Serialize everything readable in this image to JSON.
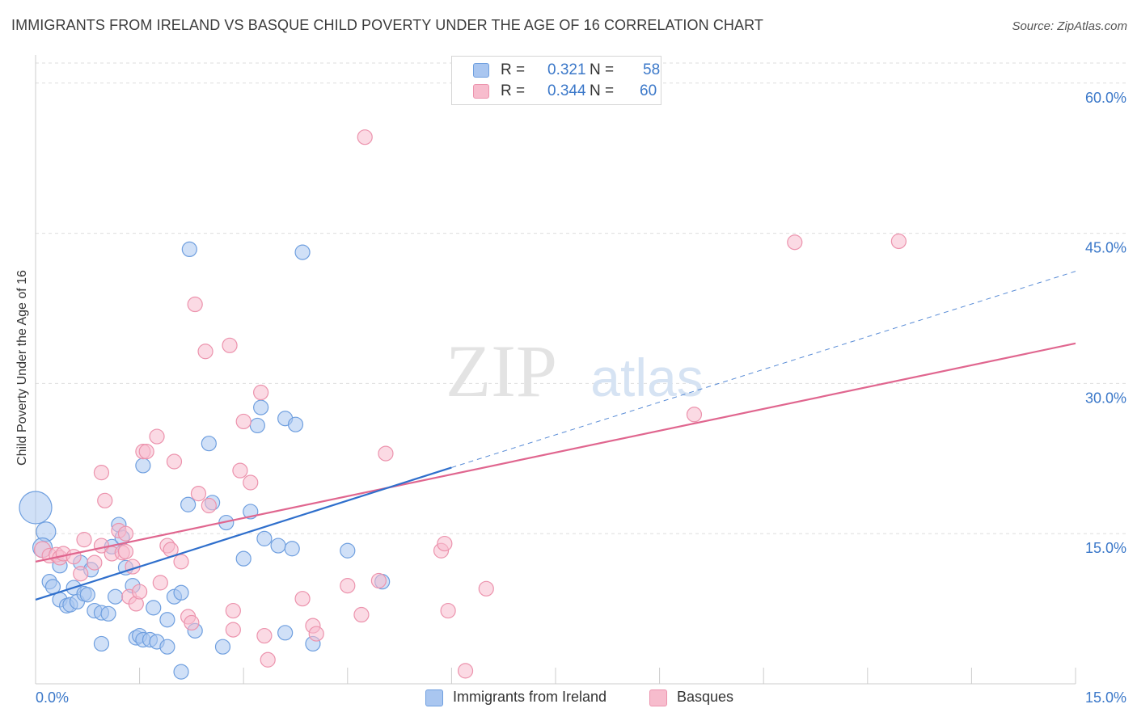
{
  "title": "IMMIGRANTS FROM IRELAND VS BASQUE CHILD POVERTY UNDER THE AGE OF 16 CORRELATION CHART",
  "source": "Source: ZipAtlas.com",
  "watermark": {
    "zip": "ZIP",
    "atlas": "atlas"
  },
  "legend_top": {
    "rows": [
      {
        "r_label": "R =",
        "r_value": "0.321",
        "n_label": "N =",
        "n_value": "58"
      },
      {
        "r_label": "R =",
        "r_value": "0.344",
        "n_label": "N =",
        "n_value": "60"
      }
    ]
  },
  "chart_data": {
    "type": "scatter",
    "title": "IMMIGRANTS FROM IRELAND VS BASQUE CHILD POVERTY UNDER THE AGE OF 16 CORRELATION CHART",
    "xlabel": "",
    "ylabel": "Child Poverty Under the Age of 16",
    "xlim": [
      0,
      15
    ],
    "ylim": [
      0,
      62
    ],
    "x_tick_labels": [
      "0.0%",
      "15.0%"
    ],
    "y_ticks": [
      15,
      30,
      45,
      60
    ],
    "y_tick_labels": [
      "15.0%",
      "30.0%",
      "45.0%",
      "60.0%"
    ],
    "grid": true,
    "legend_position": "bottom",
    "colors": {
      "blue_fill": "#a9c6f0",
      "blue_stroke": "#6f9fdf",
      "blue_line": "#2f6fcc",
      "pink_fill": "#f7bccd",
      "pink_stroke": "#ec93ad",
      "pink_line": "#e0668f",
      "tick_label": "#3b78c9",
      "grid": "#dedede"
    },
    "series": [
      {
        "name": "Immigrants from Ireland",
        "color": "#a9c6f0",
        "points": [
          [
            0.0,
            17.6,
            20
          ],
          [
            0.15,
            15.2,
            12
          ],
          [
            0.1,
            13.6,
            12
          ],
          [
            0.2,
            10.2,
            9
          ],
          [
            0.25,
            9.7,
            9
          ],
          [
            0.35,
            11.8,
            9
          ],
          [
            0.35,
            8.4,
            9
          ],
          [
            0.45,
            7.8,
            9
          ],
          [
            0.5,
            7.9,
            9
          ],
          [
            0.55,
            9.6,
            9
          ],
          [
            0.6,
            8.2,
            9
          ],
          [
            0.65,
            12.1,
            9
          ],
          [
            0.7,
            9.0,
            9
          ],
          [
            0.75,
            8.9,
            9
          ],
          [
            0.8,
            11.4,
            9
          ],
          [
            0.85,
            7.3,
            9
          ],
          [
            0.95,
            7.1,
            9
          ],
          [
            1.05,
            7.0,
            9
          ],
          [
            0.95,
            4.0,
            9
          ],
          [
            1.1,
            13.7,
            9
          ],
          [
            1.2,
            15.9,
            9
          ],
          [
            1.25,
            14.6,
            9
          ],
          [
            1.3,
            11.6,
            9
          ],
          [
            1.15,
            8.7,
            9
          ],
          [
            1.4,
            9.8,
            9
          ],
          [
            1.45,
            4.6,
            9
          ],
          [
            1.5,
            4.8,
            9
          ],
          [
            1.55,
            4.4,
            9
          ],
          [
            1.65,
            4.4,
            9
          ],
          [
            1.75,
            4.2,
            9
          ],
          [
            1.55,
            21.8,
            9
          ],
          [
            1.7,
            7.6,
            9
          ],
          [
            1.9,
            6.4,
            9
          ],
          [
            1.9,
            3.7,
            9
          ],
          [
            2.0,
            8.7,
            9
          ],
          [
            2.1,
            9.1,
            9
          ],
          [
            2.1,
            1.2,
            9
          ],
          [
            2.2,
            17.9,
            9
          ],
          [
            2.3,
            5.3,
            9
          ],
          [
            2.5,
            24.0,
            9
          ],
          [
            2.55,
            18.1,
            9
          ],
          [
            2.7,
            3.7,
            9
          ],
          [
            2.75,
            16.1,
            9
          ],
          [
            3.0,
            12.5,
            9
          ],
          [
            3.1,
            17.2,
            9
          ],
          [
            3.2,
            25.8,
            9
          ],
          [
            3.25,
            27.6,
            9
          ],
          [
            3.3,
            14.5,
            9
          ],
          [
            3.5,
            13.8,
            9
          ],
          [
            3.6,
            5.1,
            9
          ],
          [
            3.6,
            26.5,
            9
          ],
          [
            3.75,
            25.9,
            9
          ],
          [
            3.7,
            13.5,
            9
          ],
          [
            4.0,
            4.0,
            9
          ],
          [
            4.5,
            13.3,
            9
          ],
          [
            5.0,
            10.2,
            9
          ],
          [
            2.22,
            43.4,
            9
          ],
          [
            3.85,
            43.1,
            9
          ]
        ],
        "trend": {
          "x": [
            0,
            6
          ],
          "y": [
            8.4,
            21.6
          ],
          "dashed_to": [
            15,
            41.2
          ]
        }
      },
      {
        "name": "Basques",
        "color": "#f7bccd",
        "points": [
          [
            0.1,
            13.4,
            10
          ],
          [
            0.2,
            12.8,
            9
          ],
          [
            0.3,
            12.9,
            9
          ],
          [
            0.35,
            12.6,
            9
          ],
          [
            0.4,
            13.0,
            9
          ],
          [
            0.55,
            12.7,
            9
          ],
          [
            0.65,
            11.0,
            9
          ],
          [
            0.7,
            14.4,
            9
          ],
          [
            0.85,
            12.1,
            9
          ],
          [
            0.95,
            13.8,
            9
          ],
          [
            0.95,
            21.1,
            9
          ],
          [
            1.0,
            18.3,
            9
          ],
          [
            1.1,
            13.0,
            9
          ],
          [
            1.2,
            15.3,
            9
          ],
          [
            1.25,
            13.1,
            9
          ],
          [
            1.3,
            15.0,
            9
          ],
          [
            1.3,
            13.2,
            9
          ],
          [
            1.35,
            8.7,
            9
          ],
          [
            1.45,
            8.0,
            9
          ],
          [
            1.5,
            9.2,
            9
          ],
          [
            1.55,
            23.2,
            9
          ],
          [
            1.6,
            23.2,
            9
          ],
          [
            1.75,
            24.7,
            9
          ],
          [
            1.8,
            10.1,
            9
          ],
          [
            1.9,
            13.8,
            9
          ],
          [
            1.95,
            13.4,
            9
          ],
          [
            2.0,
            22.2,
            9
          ],
          [
            2.1,
            12.2,
            9
          ],
          [
            2.2,
            6.7,
            9
          ],
          [
            2.25,
            6.1,
            9
          ],
          [
            2.35,
            19.0,
            9
          ],
          [
            2.5,
            17.8,
            9
          ],
          [
            2.3,
            37.9,
            9
          ],
          [
            2.45,
            33.2,
            9
          ],
          [
            2.8,
            33.8,
            9
          ],
          [
            2.85,
            7.3,
            9
          ],
          [
            2.85,
            5.4,
            9
          ],
          [
            2.95,
            21.3,
            9
          ],
          [
            3.0,
            26.2,
            9
          ],
          [
            3.1,
            20.1,
            9
          ],
          [
            3.25,
            29.1,
            9
          ],
          [
            3.3,
            4.8,
            9
          ],
          [
            3.35,
            2.4,
            9
          ],
          [
            3.85,
            8.5,
            9
          ],
          [
            4.0,
            5.8,
            9
          ],
          [
            4.05,
            5.0,
            9
          ],
          [
            4.5,
            9.8,
            9
          ],
          [
            4.7,
            6.9,
            9
          ],
          [
            4.75,
            54.6,
            9
          ],
          [
            4.95,
            10.3,
            9
          ],
          [
            5.05,
            23.0,
            9
          ],
          [
            5.85,
            13.3,
            9
          ],
          [
            5.9,
            14.0,
            9
          ],
          [
            5.95,
            7.3,
            9
          ],
          [
            6.2,
            1.3,
            9
          ],
          [
            6.5,
            9.5,
            9
          ],
          [
            9.5,
            26.9,
            9
          ],
          [
            10.95,
            44.1,
            9
          ],
          [
            12.45,
            44.2,
            9
          ],
          [
            1.4,
            11.7,
            9
          ]
        ],
        "trend": {
          "x": [
            0,
            15
          ],
          "y": [
            12.2,
            34.0
          ]
        }
      }
    ]
  },
  "bottom_legend": [
    {
      "label": "Immigrants from Ireland"
    },
    {
      "label": "Basques"
    }
  ]
}
